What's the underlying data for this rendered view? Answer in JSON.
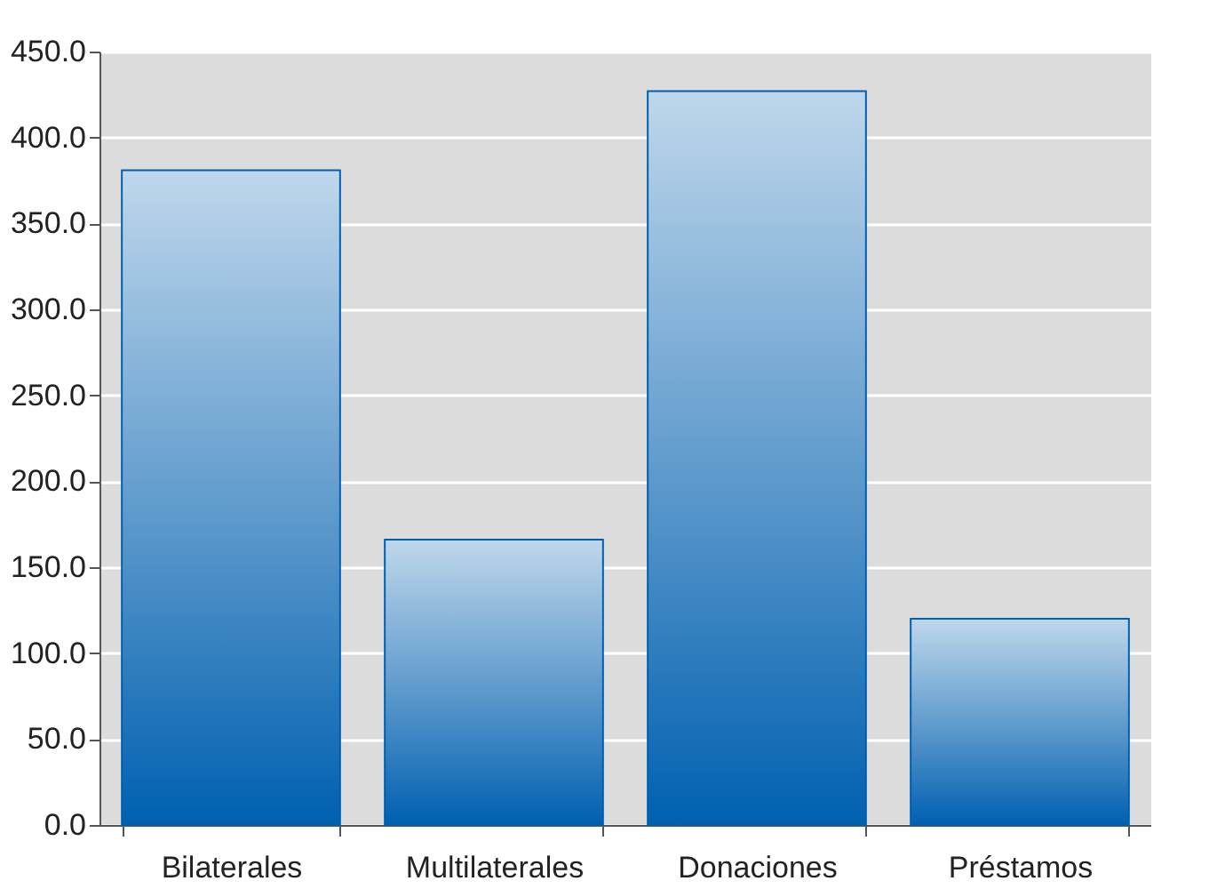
{
  "chart_data": {
    "type": "bar",
    "categories": [
      "Bilaterales",
      "Multilaterales",
      "Donaciones",
      "Préstamos"
    ],
    "values": [
      381,
      166,
      427,
      120
    ],
    "color": "#0060b0",
    "ylim": [
      0,
      450
    ],
    "yticks": [
      {
        "value": 0,
        "label": "0.0"
      },
      {
        "value": 50,
        "label": "50.0"
      },
      {
        "value": 100,
        "label": "100.0"
      },
      {
        "value": 150,
        "label": "150.0"
      },
      {
        "value": 200,
        "label": "200.0"
      },
      {
        "value": 250,
        "label": "250.0"
      },
      {
        "value": 300,
        "label": "300.0"
      },
      {
        "value": 350,
        "label": "350.0"
      },
      {
        "value": 400,
        "label": "400.0"
      },
      {
        "value": 450,
        "label": "450.0"
      }
    ],
    "grid": "y"
  }
}
